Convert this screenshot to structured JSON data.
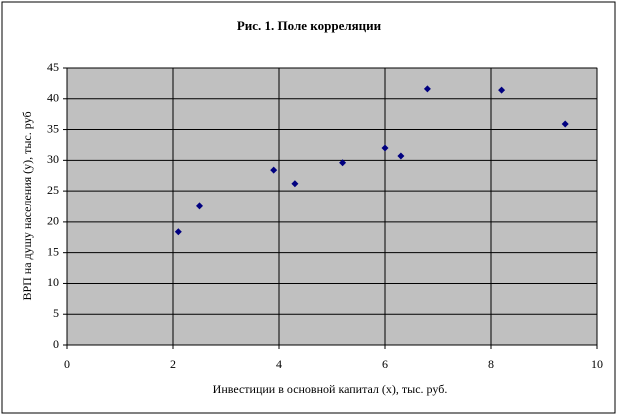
{
  "chart_data": {
    "type": "scatter",
    "title": "Рис. 1. Поле корреляции",
    "x_label": "Инвестиции в основной капитал (х), тыс. руб.",
    "y_label": "ВРП на душу населения (у), тыс. руб",
    "x": [
      2.1,
      2.5,
      3.9,
      4.3,
      5.2,
      6.0,
      6.3,
      6.8,
      8.2,
      9.4
    ],
    "values": [
      18.4,
      22.6,
      28.4,
      26.2,
      29.6,
      32.0,
      30.7,
      41.6,
      41.4,
      35.9
    ],
    "color": "#000080",
    "xlim": [
      0,
      10
    ],
    "xticks": [
      0,
      2,
      4,
      6,
      8,
      10
    ],
    "ylim": [
      0,
      45
    ],
    "yticks": [
      0,
      5,
      10,
      15,
      20,
      25,
      30,
      35,
      40,
      45
    ],
    "grid": true
  }
}
